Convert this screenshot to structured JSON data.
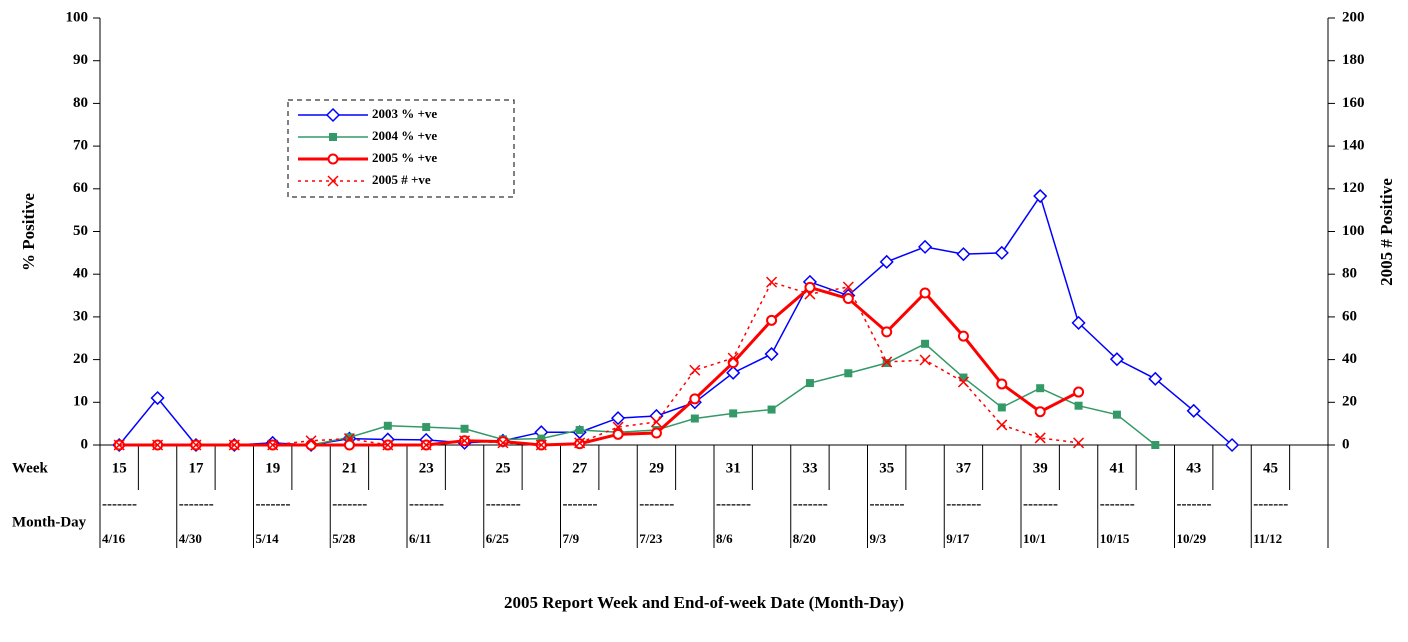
{
  "chart_data": {
    "type": "line",
    "x_label": "2005 Report Week and End-of-week Date (Month-Day)",
    "y_label": "% Positive",
    "y2_label": "2005 # Positive",
    "week_label": "Week",
    "month_day_label": "Month-Day",
    "separator": "-------",
    "categories": [
      15,
      null,
      17,
      null,
      19,
      null,
      21,
      null,
      23,
      null,
      25,
      null,
      27,
      null,
      29,
      null,
      31,
      null,
      33,
      null,
      35,
      null,
      37,
      null,
      39,
      null,
      41,
      null,
      43,
      null,
      45,
      null
    ],
    "month_days": [
      "4/16",
      null,
      "4/30",
      null,
      "5/14",
      null,
      "5/28",
      null,
      "6/11",
      null,
      "6/25",
      null,
      "7/9",
      null,
      "7/23",
      null,
      "8/6",
      null,
      "8/20",
      null,
      "9/3",
      null,
      "9/17",
      null,
      "10/1",
      null,
      "10/15",
      null,
      "10/29",
      null,
      "11/12",
      null
    ],
    "series": [
      {
        "name": "2003 % +ve",
        "color": "#0000ff",
        "marker": "diamond",
        "line_style": "solid",
        "line_width": 1.5,
        "values": [
          0,
          11,
          0,
          0,
          0.5,
          0,
          1.5,
          1.3,
          1.2,
          0.5,
          1,
          3,
          3,
          6.3,
          6.8,
          10,
          16.9,
          21.3,
          38.2,
          35,
          42.9,
          46.4,
          44.7,
          45,
          58.3,
          28.6,
          20.1,
          15.5,
          8,
          0,
          null,
          null
        ]
      },
      {
        "name": "2004 % +ve",
        "color": "#339966",
        "marker": "square",
        "line_style": "solid",
        "line_width": 1.5,
        "values": [
          0,
          0,
          0,
          0,
          0,
          0,
          1.8,
          4.5,
          4.2,
          3.8,
          1.3,
          1.5,
          3.5,
          3,
          3.5,
          6.2,
          7.4,
          8.3,
          14.5,
          16.8,
          19.2,
          23.7,
          15.8,
          8.8,
          13.3,
          9.2,
          7.1,
          0,
          null,
          null,
          null,
          null
        ]
      },
      {
        "name": "2005 % +ve",
        "color": "#ff0000",
        "marker": "circle",
        "line_style": "solid",
        "line_width": 3,
        "values": [
          0,
          0,
          0,
          0,
          0,
          0,
          0,
          0,
          0,
          1,
          0.8,
          0,
          0.3,
          2.5,
          2.8,
          10.8,
          19.3,
          29.2,
          36.9,
          34.3,
          26.5,
          35.6,
          25.5,
          14.3,
          7.8,
          12.4,
          null,
          null,
          null,
          null,
          null,
          null
        ]
      },
      {
        "name": "2005 # +ve",
        "color": "#ff0000",
        "marker": "x",
        "line_style": "dotted",
        "line_width": 1.5,
        "axis": "y2",
        "values": [
          0,
          0,
          0,
          0,
          0,
          2,
          3,
          0,
          0,
          2,
          1,
          0,
          1,
          8.4,
          10.8,
          35,
          40.7,
          76.3,
          70.7,
          74,
          38.9,
          39.8,
          29.5,
          9.4,
          3.3,
          1,
          null,
          null,
          null,
          null,
          null,
          null
        ]
      }
    ],
    "ylim": [
      0,
      100
    ],
    "yticks": [
      0,
      10,
      20,
      30,
      40,
      50,
      60,
      70,
      80,
      90,
      100
    ],
    "y2lim": [
      0,
      200
    ],
    "y2ticks": [
      0,
      20,
      40,
      60,
      80,
      100,
      120,
      140,
      160,
      180,
      200
    ],
    "legend": "upper left"
  }
}
